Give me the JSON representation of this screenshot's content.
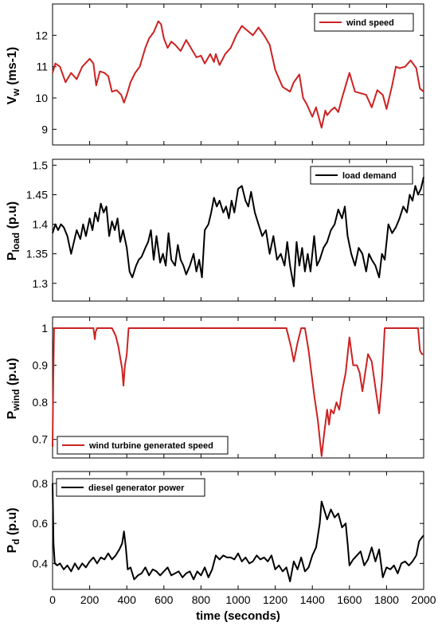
{
  "chart_data": [
    {
      "type": "line",
      "ylabel": {
        "main": "V",
        "sub": "w",
        "suffix": " (ms-1)"
      },
      "xlim": [
        0,
        2000
      ],
      "ylim": [
        8.5,
        13
      ],
      "yticks": [
        9,
        10,
        11,
        12
      ],
      "xticks": [
        0,
        200,
        400,
        600,
        800,
        1000,
        1200,
        1400,
        1600,
        1800,
        2000
      ],
      "show_xtick_labels": false,
      "grid": false,
      "legend_position": "top-right",
      "series": [
        {
          "name": "wind speed",
          "color": "#cc2222",
          "x": [
            0,
            15,
            40,
            70,
            100,
            130,
            160,
            200,
            220,
            235,
            255,
            280,
            300,
            320,
            345,
            370,
            385,
            400,
            420,
            445,
            470,
            500,
            520,
            545,
            570,
            585,
            600,
            620,
            640,
            660,
            690,
            720,
            750,
            775,
            800,
            820,
            850,
            870,
            880,
            900,
            930,
            960,
            990,
            1020,
            1050,
            1080,
            1110,
            1140,
            1170,
            1200,
            1240,
            1280,
            1300,
            1330,
            1350,
            1370,
            1400,
            1420,
            1450,
            1470,
            1480,
            1500,
            1520,
            1540,
            1560,
            1580,
            1600,
            1630,
            1660,
            1690,
            1720,
            1750,
            1780,
            1800,
            1830,
            1850,
            1870,
            1900,
            1930,
            1960,
            1980,
            2000
          ],
          "y": [
            10.8,
            11.1,
            11.0,
            10.5,
            10.8,
            10.6,
            11.0,
            11.25,
            11.1,
            10.4,
            10.85,
            10.8,
            10.7,
            10.2,
            10.25,
            10.1,
            9.85,
            10.1,
            10.5,
            10.8,
            11.0,
            11.6,
            11.9,
            12.1,
            12.45,
            12.35,
            11.9,
            11.6,
            11.8,
            11.7,
            11.5,
            11.85,
            11.55,
            11.3,
            11.35,
            11.1,
            11.4,
            11.15,
            11.4,
            11.05,
            11.4,
            11.6,
            12.0,
            12.3,
            12.15,
            12.0,
            12.25,
            12.0,
            11.7,
            10.9,
            10.35,
            10.2,
            10.5,
            10.75,
            10.0,
            9.8,
            9.4,
            9.7,
            9.05,
            9.6,
            9.45,
            9.6,
            9.7,
            9.55,
            10.0,
            10.4,
            10.8,
            10.2,
            10.15,
            10.1,
            9.7,
            10.25,
            10.1,
            9.65,
            10.4,
            11.0,
            10.95,
            11.0,
            11.2,
            10.95,
            10.3,
            10.2
          ]
        }
      ]
    },
    {
      "type": "line",
      "ylabel": {
        "main": "P",
        "sub": "load",
        "suffix": " (p.u)"
      },
      "xlim": [
        0,
        2000
      ],
      "ylim": [
        1.27,
        1.51
      ],
      "yticks": [
        1.3,
        1.35,
        1.4,
        1.45,
        1.5
      ],
      "xticks": [
        0,
        200,
        400,
        600,
        800,
        1000,
        1200,
        1400,
        1600,
        1800,
        2000
      ],
      "show_xtick_labels": false,
      "grid": false,
      "legend_position": "top-right",
      "series": [
        {
          "name": "load demand",
          "color": "#000000",
          "x": [
            0,
            15,
            30,
            45,
            60,
            80,
            100,
            115,
            130,
            150,
            165,
            180,
            200,
            215,
            230,
            245,
            260,
            275,
            290,
            305,
            320,
            335,
            350,
            365,
            380,
            400,
            415,
            430,
            450,
            465,
            480,
            500,
            515,
            530,
            545,
            560,
            580,
            595,
            610,
            625,
            640,
            660,
            675,
            690,
            705,
            720,
            740,
            760,
            775,
            790,
            805,
            820,
            840,
            855,
            870,
            885,
            900,
            920,
            935,
            950,
            965,
            980,
            1000,
            1020,
            1040,
            1055,
            1070,
            1090,
            1110,
            1130,
            1150,
            1170,
            1190,
            1210,
            1230,
            1250,
            1265,
            1280,
            1300,
            1315,
            1330,
            1345,
            1360,
            1375,
            1390,
            1410,
            1425,
            1440,
            1460,
            1480,
            1500,
            1520,
            1540,
            1560,
            1575,
            1590,
            1610,
            1630,
            1650,
            1670,
            1690,
            1705,
            1720,
            1740,
            1760,
            1775,
            1790,
            1810,
            1830,
            1850,
            1870,
            1890,
            1910,
            1925,
            1940,
            1955,
            1970,
            1985,
            2000
          ],
          "y": [
            1.385,
            1.4,
            1.39,
            1.4,
            1.395,
            1.38,
            1.35,
            1.37,
            1.39,
            1.375,
            1.4,
            1.38,
            1.41,
            1.39,
            1.42,
            1.405,
            1.435,
            1.42,
            1.43,
            1.38,
            1.405,
            1.39,
            1.41,
            1.37,
            1.39,
            1.36,
            1.32,
            1.31,
            1.33,
            1.34,
            1.345,
            1.36,
            1.37,
            1.39,
            1.34,
            1.38,
            1.335,
            1.35,
            1.33,
            1.385,
            1.34,
            1.33,
            1.365,
            1.34,
            1.33,
            1.315,
            1.33,
            1.35,
            1.32,
            1.34,
            1.31,
            1.39,
            1.4,
            1.42,
            1.445,
            1.43,
            1.44,
            1.42,
            1.43,
            1.41,
            1.44,
            1.42,
            1.46,
            1.465,
            1.44,
            1.43,
            1.455,
            1.42,
            1.4,
            1.38,
            1.39,
            1.35,
            1.38,
            1.34,
            1.35,
            1.33,
            1.37,
            1.33,
            1.295,
            1.37,
            1.33,
            1.36,
            1.32,
            1.35,
            1.32,
            1.38,
            1.33,
            1.34,
            1.36,
            1.37,
            1.39,
            1.4,
            1.425,
            1.41,
            1.43,
            1.38,
            1.35,
            1.33,
            1.36,
            1.35,
            1.32,
            1.35,
            1.34,
            1.33,
            1.31,
            1.35,
            1.34,
            1.4,
            1.385,
            1.395,
            1.41,
            1.43,
            1.42,
            1.45,
            1.44,
            1.465,
            1.45,
            1.46,
            1.48
          ]
        }
      ]
    },
    {
      "type": "line",
      "ylabel": {
        "main": "P",
        "sub": "wind",
        "suffix": " (p.u)"
      },
      "xlim": [
        0,
        2000
      ],
      "ylim": [
        0.65,
        1.03
      ],
      "yticks": [
        0.7,
        0.8,
        0.9,
        1
      ],
      "xticks": [
        0,
        200,
        400,
        600,
        800,
        1000,
        1200,
        1400,
        1600,
        1800,
        2000
      ],
      "show_xtick_labels": false,
      "grid": false,
      "legend_position": "bottom-left",
      "series": [
        {
          "name": "wind turbine generated speed",
          "color": "#cc2222",
          "x": [
            0,
            3,
            8,
            15,
            100,
            220,
            228,
            232,
            240,
            320,
            340,
            355,
            365,
            375,
            382,
            390,
            400,
            410,
            420,
            600,
            900,
            1200,
            1260,
            1285,
            1300,
            1320,
            1340,
            1360,
            1380,
            1395,
            1410,
            1430,
            1450,
            1465,
            1480,
            1490,
            1500,
            1515,
            1530,
            1545,
            1560,
            1580,
            1600,
            1620,
            1640,
            1655,
            1670,
            1685,
            1700,
            1720,
            1740,
            1760,
            1775,
            1790,
            1800,
            1900,
            1970,
            1980,
            1990,
            2000
          ],
          "y": [
            0.68,
            0.83,
            1.0,
            1.0,
            1.0,
            1.0,
            0.97,
            0.99,
            1.0,
            1.0,
            0.98,
            0.95,
            0.92,
            0.89,
            0.845,
            0.9,
            0.93,
            1.0,
            1.0,
            1.0,
            1.0,
            1.0,
            1.0,
            0.95,
            0.91,
            0.96,
            1.0,
            1.0,
            0.94,
            0.88,
            0.82,
            0.75,
            0.655,
            0.72,
            0.78,
            0.74,
            0.78,
            0.77,
            0.8,
            0.78,
            0.83,
            0.88,
            0.975,
            0.9,
            0.9,
            0.88,
            0.83,
            0.88,
            0.93,
            0.91,
            0.84,
            0.77,
            0.86,
            1.0,
            1.0,
            1.0,
            1.0,
            0.94,
            0.93,
            0.93
          ]
        }
      ]
    },
    {
      "type": "line",
      "ylabel": {
        "main": "P",
        "sub": "d",
        "suffix": " (p.u)"
      },
      "xlabel": "time (seconds)",
      "xlim": [
        0,
        2000
      ],
      "ylim": [
        0.27,
        0.86
      ],
      "yticks": [
        0.4,
        0.6,
        0.8
      ],
      "xticks": [
        0,
        200,
        400,
        600,
        800,
        1000,
        1200,
        1400,
        1600,
        1800,
        2000
      ],
      "show_xtick_labels": true,
      "grid": false,
      "legend_position": "top-left",
      "series": [
        {
          "name": "diesel generator power",
          "color": "#000000",
          "x": [
            0,
            5,
            12,
            25,
            40,
            60,
            80,
            100,
            120,
            140,
            160,
            180,
            200,
            220,
            240,
            260,
            280,
            300,
            320,
            340,
            360,
            375,
            385,
            395,
            405,
            420,
            440,
            460,
            480,
            500,
            520,
            540,
            560,
            580,
            600,
            620,
            640,
            660,
            680,
            700,
            720,
            740,
            760,
            780,
            800,
            820,
            840,
            860,
            880,
            900,
            920,
            940,
            960,
            980,
            1000,
            1020,
            1040,
            1060,
            1080,
            1100,
            1120,
            1140,
            1160,
            1180,
            1200,
            1220,
            1240,
            1260,
            1280,
            1300,
            1320,
            1340,
            1360,
            1380,
            1400,
            1420,
            1440,
            1450,
            1460,
            1480,
            1500,
            1520,
            1540,
            1560,
            1580,
            1590,
            1600,
            1620,
            1640,
            1660,
            1680,
            1700,
            1720,
            1740,
            1760,
            1780,
            1800,
            1820,
            1840,
            1860,
            1880,
            1900,
            1920,
            1940,
            1960,
            1975,
            1990,
            2000
          ],
          "y": [
            0.8,
            0.5,
            0.4,
            0.39,
            0.4,
            0.37,
            0.39,
            0.36,
            0.4,
            0.37,
            0.4,
            0.38,
            0.41,
            0.43,
            0.4,
            0.43,
            0.42,
            0.45,
            0.42,
            0.44,
            0.47,
            0.5,
            0.56,
            0.48,
            0.37,
            0.38,
            0.32,
            0.34,
            0.35,
            0.38,
            0.34,
            0.37,
            0.36,
            0.34,
            0.36,
            0.38,
            0.34,
            0.35,
            0.36,
            0.33,
            0.35,
            0.36,
            0.32,
            0.36,
            0.34,
            0.38,
            0.33,
            0.37,
            0.44,
            0.42,
            0.44,
            0.43,
            0.43,
            0.42,
            0.45,
            0.41,
            0.43,
            0.4,
            0.41,
            0.44,
            0.42,
            0.43,
            0.41,
            0.44,
            0.37,
            0.39,
            0.36,
            0.38,
            0.31,
            0.41,
            0.37,
            0.43,
            0.36,
            0.38,
            0.44,
            0.48,
            0.6,
            0.71,
            0.68,
            0.62,
            0.67,
            0.63,
            0.65,
            0.58,
            0.6,
            0.5,
            0.39,
            0.42,
            0.44,
            0.46,
            0.39,
            0.42,
            0.48,
            0.41,
            0.47,
            0.33,
            0.38,
            0.37,
            0.39,
            0.35,
            0.4,
            0.41,
            0.39,
            0.41,
            0.44,
            0.51,
            0.53,
            0.54
          ]
        }
      ]
    }
  ]
}
